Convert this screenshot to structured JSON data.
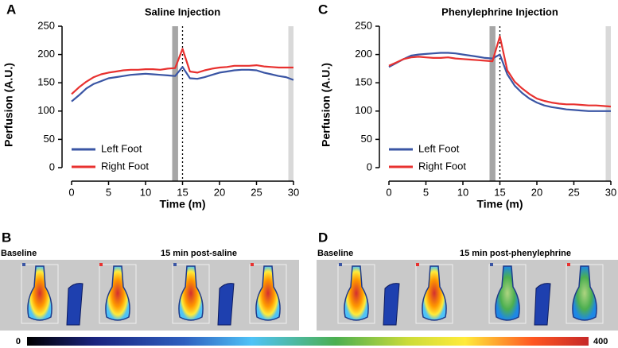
{
  "chart_data": [
    {
      "type": "line",
      "panel": "A",
      "title": "Saline Injection",
      "x_label": "Time (m)",
      "y_label": "Perfusion (A.U.)",
      "x": [
        0,
        1,
        2,
        3,
        4,
        5,
        6,
        7,
        8,
        9,
        10,
        11,
        12,
        13,
        14,
        15,
        16,
        17,
        18,
        19,
        20,
        21,
        22,
        23,
        24,
        25,
        26,
        27,
        28,
        29,
        30
      ],
      "series": [
        {
          "name": "Left Foot",
          "color": "#3a55a4",
          "values": [
            117,
            128,
            140,
            148,
            153,
            158,
            160,
            162,
            164,
            165,
            166,
            165,
            164,
            163,
            162,
            178,
            158,
            157,
            160,
            164,
            168,
            170,
            172,
            173,
            173,
            172,
            168,
            165,
            162,
            160,
            155
          ]
        },
        {
          "name": "Right Foot",
          "color": "#e8312f",
          "values": [
            130,
            142,
            152,
            160,
            165,
            168,
            170,
            172,
            173,
            173,
            174,
            174,
            173,
            175,
            176,
            210,
            170,
            168,
            172,
            175,
            177,
            178,
            180,
            180,
            180,
            181,
            179,
            178,
            177,
            177,
            177
          ]
        }
      ],
      "xlim": [
        0,
        30
      ],
      "xticks": [
        0,
        5,
        10,
        15,
        20,
        25,
        30
      ],
      "ylim": [
        0,
        250
      ],
      "yticks": [
        0,
        50,
        100,
        150,
        200,
        250
      ],
      "shaded_regions": [
        {
          "xlim": [
            13.6,
            14.4
          ],
          "color": "#a6a6a6"
        },
        {
          "xlim": [
            29.3,
            30
          ],
          "color": "#d9d9d9"
        }
      ],
      "vline": 15,
      "legend": "lower left"
    },
    {
      "type": "line",
      "panel": "C",
      "title": "Phenylephrine Injection",
      "x_label": "Time (m)",
      "y_label": "Perfusion (A.U.)",
      "x": [
        0,
        1,
        2,
        3,
        4,
        5,
        6,
        7,
        8,
        9,
        10,
        11,
        12,
        13,
        14,
        15,
        16,
        17,
        18,
        19,
        20,
        21,
        22,
        23,
        24,
        25,
        26,
        27,
        28,
        29,
        30
      ],
      "series": [
        {
          "name": "Left Foot",
          "color": "#3a55a4",
          "values": [
            178,
            185,
            192,
            198,
            200,
            201,
            202,
            203,
            203,
            202,
            200,
            198,
            196,
            194,
            193,
            200,
            165,
            145,
            132,
            122,
            115,
            110,
            107,
            105,
            103,
            102,
            101,
            100,
            100,
            100,
            100
          ]
        },
        {
          "name": "Right Foot",
          "color": "#e8312f",
          "values": [
            180,
            186,
            192,
            195,
            196,
            195,
            194,
            194,
            195,
            193,
            192,
            191,
            190,
            189,
            188,
            232,
            172,
            152,
            140,
            130,
            122,
            118,
            115,
            113,
            112,
            112,
            111,
            110,
            110,
            109,
            108
          ]
        }
      ],
      "xlim": [
        0,
        30
      ],
      "xticks": [
        0,
        5,
        10,
        15,
        20,
        25,
        30
      ],
      "ylim": [
        0,
        250
      ],
      "yticks": [
        0,
        50,
        100,
        150,
        200,
        250
      ],
      "shaded_regions": [
        {
          "xlim": [
            13.6,
            14.4
          ],
          "color": "#a6a6a6"
        },
        {
          "xlim": [
            29.3,
            30
          ],
          "color": "#d9d9d9"
        }
      ],
      "vline": 15,
      "legend": "lower left"
    }
  ],
  "images": [
    {
      "panel": "B",
      "left_caption": "Baseline",
      "right_caption": "15 min post-saline"
    },
    {
      "panel": "D",
      "left_caption": "Baseline",
      "right_caption": "15 min post-phenylephrine"
    }
  ],
  "colorbar": {
    "lim": [
      0,
      400
    ],
    "ticks": [
      0,
      400
    ]
  }
}
